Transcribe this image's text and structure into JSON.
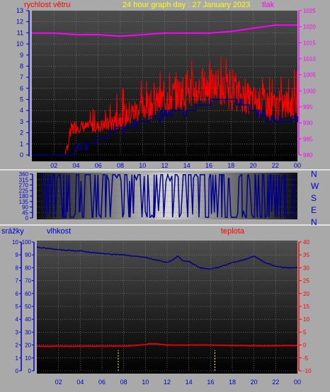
{
  "header": {
    "left_label": "rychlost větru",
    "title": "24 hour graph day : 27 January 2023",
    "right_label": "tlak"
  },
  "wind_panel_directions": [
    "N",
    "W",
    "S",
    "E",
    "N"
  ],
  "bottom_labels": {
    "rain": "srážky",
    "humidity": "vlhkost",
    "temperature": "teplota"
  },
  "colors": {
    "background": "#a9a9a9",
    "wind_speed": "#ff0000",
    "wind_avg": "#00008b",
    "pressure": "#ff00ff",
    "humidity": "#00008b",
    "temperature": "#dd0000",
    "rain_marker": "#ffff00",
    "axis_blue": "#0000cc",
    "axis_magenta": "#ff00ff",
    "axis_red": "#ff0000",
    "title": "#ffff00"
  },
  "chart_data": [
    {
      "type": "line",
      "name": "wind-and-pressure",
      "x_ticks": [
        "02",
        "04",
        "06",
        "08",
        "10",
        "12",
        "14",
        "16",
        "18",
        "20",
        "22",
        "00"
      ],
      "y_left": {
        "ticks": [
          0,
          1,
          2,
          3,
          4,
          5,
          6,
          7,
          8,
          9,
          10,
          11,
          12,
          13
        ],
        "ylim": [
          0,
          13
        ]
      },
      "y_right": {
        "ticks": [
          980,
          985,
          990,
          995,
          1000,
          1005,
          1010,
          1015,
          1020,
          1025
        ],
        "ylim": [
          980,
          1025
        ]
      },
      "series": [
        {
          "key": "pressure",
          "axis": "right",
          "x": [
            0,
            2,
            4,
            6,
            8,
            10,
            12,
            14,
            16,
            18,
            20,
            22,
            24
          ],
          "y": [
            1018,
            1018,
            1017.5,
            1017.5,
            1017,
            1017.5,
            1018,
            1018,
            1018,
            1018.5,
            1019.5,
            1020.5,
            1020.5
          ]
        },
        {
          "key": "wind_max",
          "axis": "left",
          "x": [
            0,
            3,
            3.3,
            3.6,
            4,
            5,
            6,
            7,
            8,
            9,
            10,
            11,
            12,
            13,
            14,
            15,
            16,
            17,
            18,
            19,
            20,
            21,
            22,
            23,
            24
          ],
          "y": [
            0,
            0,
            2,
            3,
            3.2,
            3,
            3.2,
            3.5,
            4.5,
            5,
            5.5,
            6,
            6.5,
            7,
            7.5,
            7.5,
            7.8,
            7.5,
            7.2,
            6.8,
            6.3,
            6,
            5.8,
            6,
            6.2
          ]
        },
        {
          "key": "wind_min",
          "axis": "left",
          "x": [
            0,
            3,
            3.3,
            3.6,
            4,
            5,
            6,
            7,
            8,
            9,
            10,
            11,
            12,
            13,
            14,
            15,
            16,
            17,
            18,
            19,
            20,
            21,
            22,
            23,
            24
          ],
          "y": [
            0,
            0,
            0.5,
            1.5,
            2,
            2,
            2,
            2,
            2.3,
            2.5,
            3,
            3.2,
            3.5,
            3.8,
            4,
            4.2,
            4.5,
            4.2,
            4,
            3.8,
            3.5,
            3.2,
            3,
            3,
            3.2
          ]
        },
        {
          "key": "wind_avg",
          "axis": "left",
          "x": [
            0,
            3,
            3.3,
            3.6,
            4,
            5,
            6,
            7,
            8,
            9,
            10,
            11,
            12,
            13,
            14,
            15,
            16,
            17,
            18,
            19,
            20,
            21,
            22,
            23,
            24
          ],
          "y": [
            0,
            0,
            0,
            0,
            1,
            1,
            1.2,
            2,
            2.5,
            2.5,
            3,
            3.5,
            3.5,
            4,
            4,
            4.5,
            4.8,
            5,
            5,
            4.5,
            4,
            3.5,
            3,
            3.2,
            3.5
          ]
        }
      ]
    },
    {
      "type": "line",
      "name": "wind-direction",
      "y_ticks": [
        0,
        45,
        90,
        135,
        180,
        225,
        270,
        315,
        360
      ],
      "ylim": [
        0,
        360
      ]
    },
    {
      "type": "line",
      "name": "humidity-temperature-rain",
      "x_ticks": [
        "02",
        "04",
        "06",
        "08",
        "10",
        "12",
        "14",
        "16",
        "18",
        "20",
        "22",
        "00"
      ],
      "y_rain": {
        "ticks": [
          0,
          1,
          2,
          3,
          4,
          5,
          6,
          7,
          8,
          9,
          10
        ],
        "ylim": [
          0,
          10
        ]
      },
      "y_humidity": {
        "ticks": [
          0,
          10,
          20,
          30,
          40,
          50,
          60,
          70,
          80,
          90,
          100
        ],
        "ylim": [
          0,
          100
        ]
      },
      "y_temperature": {
        "ticks": [
          -10,
          -5,
          0,
          5,
          10,
          15,
          20,
          25,
          30,
          35,
          40
        ],
        "ylim": [
          -10,
          40
        ]
      },
      "series": [
        {
          "key": "humidity",
          "axis": "humidity",
          "x": [
            0,
            1,
            2,
            4,
            6,
            8,
            10,
            11,
            12,
            12.5,
            13,
            13.5,
            14,
            15,
            16,
            17,
            18,
            19,
            20,
            21,
            22,
            23,
            24
          ],
          "y": [
            96,
            95,
            94,
            93,
            91,
            90,
            88,
            86,
            84,
            86,
            89,
            85,
            85,
            80,
            79,
            81,
            84,
            86,
            89,
            84,
            81,
            80,
            80
          ]
        },
        {
          "key": "temperature",
          "axis": "temperature",
          "x": [
            0,
            2,
            4,
            6,
            8,
            9,
            10,
            10.5,
            11,
            11.5,
            12,
            14,
            16,
            18,
            20,
            22,
            24
          ],
          "y": [
            -0.5,
            -0.5,
            -0.5,
            -0.5,
            -0.4,
            -0.2,
            0.2,
            0.5,
            0.5,
            0.2,
            0,
            0,
            0,
            -0.2,
            -0.3,
            -0.3,
            -0.2
          ]
        },
        {
          "key": "rain_events",
          "axis": "rain",
          "x": [
            7.5,
            16.4
          ],
          "y": [
            1.6,
            1.6
          ]
        }
      ]
    }
  ]
}
